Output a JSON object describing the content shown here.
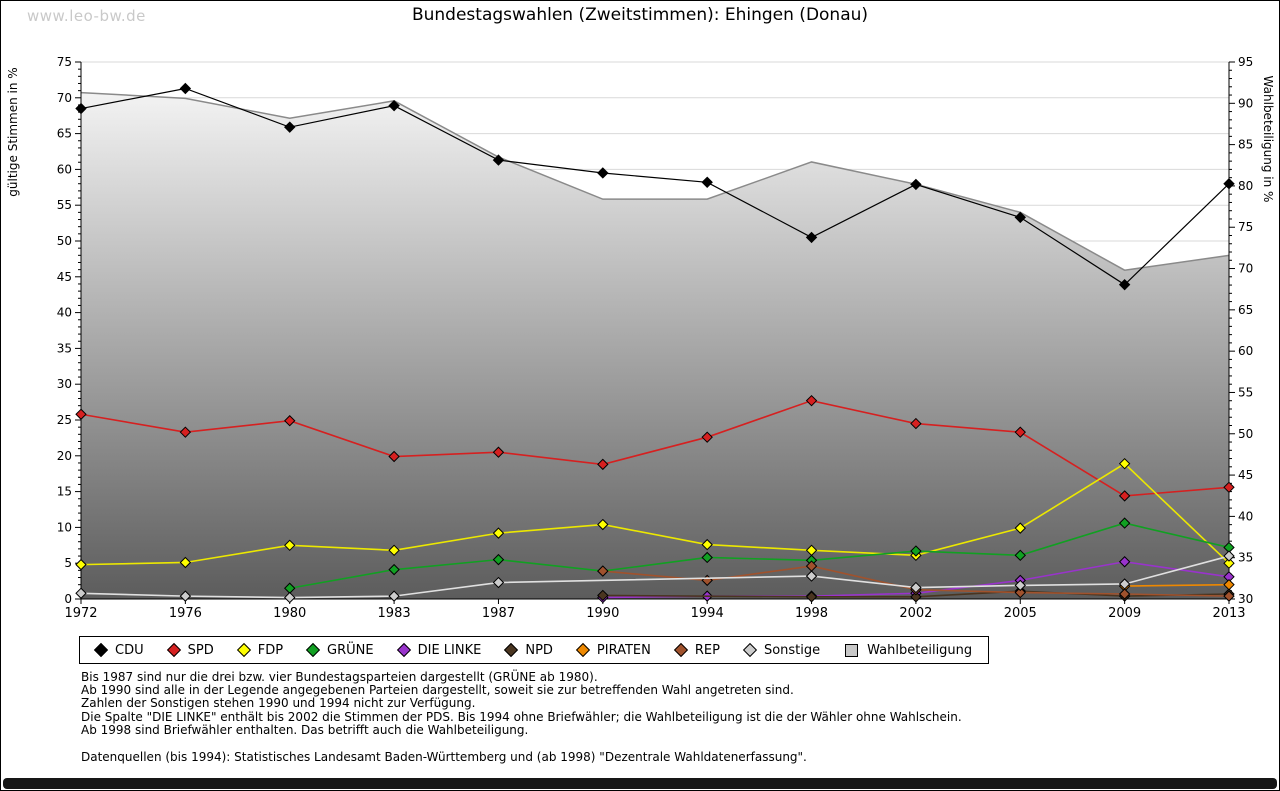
{
  "watermark": "www.leo-bw.de",
  "title": "Bundestagswahlen (Zweitstimmen): Ehingen (Donau)",
  "chart_data": {
    "type": "line",
    "categories": [
      "1972",
      "1976",
      "1980",
      "1983",
      "1987",
      "1990",
      "1994",
      "1998",
      "2002",
      "2005",
      "2009",
      "2013"
    ],
    "left_axis": {
      "label": "gültige Stimmen in %",
      "min": 0,
      "max": 75,
      "step": 5
    },
    "right_axis": {
      "label": "Wahlbeteiligung in %",
      "min": 30,
      "max": 95,
      "step": 5
    },
    "grid": true,
    "legend_position": "bottom",
    "turnout": {
      "name": "Wahlbeteiligung",
      "axis": "right",
      "values": [
        91.3,
        90.6,
        88.2,
        90.3,
        83.5,
        78.4,
        78.4,
        82.9,
        80.2,
        76.8,
        69.8,
        71.6
      ],
      "fill_top": "#fcfcfc",
      "fill_bottom": "#5c5c5c",
      "line_color": "#8a8a8a",
      "legend_fill": "#c8c8c8"
    },
    "series": [
      {
        "name": "CDU",
        "color": "#000000",
        "values": [
          68.5,
          71.3,
          65.9,
          68.9,
          61.3,
          59.5,
          58.2,
          50.5,
          57.9,
          53.3,
          43.9,
          58.0
        ]
      },
      {
        "name": "SPD",
        "color": "#d62020",
        "values": [
          25.8,
          23.3,
          24.9,
          19.9,
          20.5,
          18.8,
          22.6,
          27.7,
          24.5,
          23.3,
          14.4,
          15.6
        ]
      },
      {
        "name": "FDP",
        "color": "#ffff00",
        "line_color": "#ece800",
        "values": [
          4.8,
          5.1,
          7.5,
          6.8,
          9.2,
          10.4,
          7.6,
          6.8,
          6.1,
          9.9,
          18.9,
          5.0
        ]
      },
      {
        "name": "GRÜNE",
        "color": "#11a022",
        "values": [
          null,
          null,
          1.5,
          4.1,
          5.5,
          3.9,
          5.8,
          5.4,
          6.7,
          6.1,
          10.6,
          7.2
        ]
      },
      {
        "name": "DIE LINKE",
        "color": "#9933cc",
        "values": [
          null,
          null,
          null,
          null,
          null,
          0.2,
          0.4,
          0.4,
          0.8,
          2.6,
          5.2,
          3.1
        ]
      },
      {
        "name": "NPD",
        "color": "#4a3520",
        "values": [
          null,
          null,
          null,
          null,
          null,
          0.5,
          null,
          0.3,
          0.3,
          1.1,
          0.4,
          0.7
        ]
      },
      {
        "name": "PIRATEN",
        "color": "#ee8800",
        "values": [
          null,
          null,
          null,
          null,
          null,
          null,
          null,
          null,
          null,
          null,
          1.8,
          2.0
        ]
      },
      {
        "name": "REP",
        "color": "#a0522d",
        "values": [
          null,
          null,
          null,
          null,
          null,
          3.9,
          2.6,
          4.6,
          1.3,
          0.9,
          0.7,
          0.4
        ]
      },
      {
        "name": "Sonstige",
        "color": "#cccccc",
        "line_color": "#e0e0e0",
        "values": [
          0.8,
          0.4,
          0.2,
          0.4,
          2.3,
          null,
          null,
          3.2,
          1.6,
          1.9,
          2.1,
          6.0
        ]
      }
    ]
  },
  "footnotes": {
    "lines": [
      "Bis 1987 sind nur die drei bzw. vier Bundestagsparteien dargestellt (GRÜNE ab 1980).",
      "Ab 1990 sind alle in der Legende angegebenen Parteien dargestellt, soweit sie zur betreffenden Wahl angetreten sind.",
      "Zahlen der Sonstigen stehen 1990 und 1994 nicht zur Verfügung.",
      "Die Spalte \"DIE LINKE\" enthält bis 2002 die Stimmen der PDS. Bis 1994 ohne Briefwähler; die Wahlbeteiligung ist die der Wähler ohne Wahlschein.",
      "Ab 1998 sind Briefwähler enthalten. Das betrifft auch die Wahlbeteiligung."
    ],
    "source": "Datenquellen (bis 1994): Statistisches Landesamt Baden-Württemberg und (ab 1998) \"Dezentrale Wahldatenerfassung\"."
  }
}
